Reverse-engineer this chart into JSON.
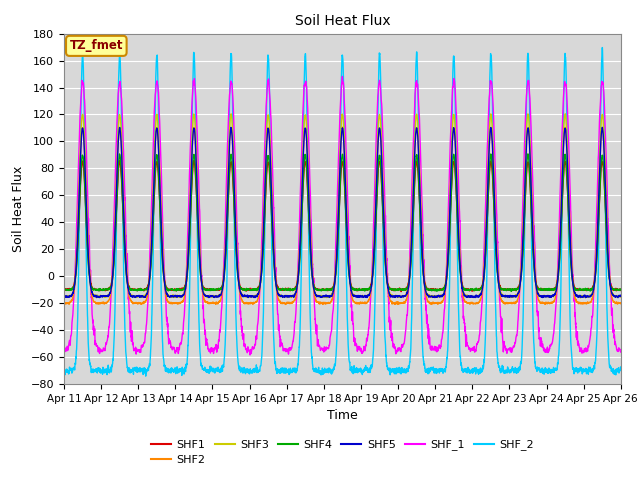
{
  "title": "Soil Heat Flux",
  "xlabel": "Time",
  "ylabel": "Soil Heat Flux",
  "ylim": [
    -80,
    180
  ],
  "yticks": [
    -80,
    -60,
    -40,
    -20,
    0,
    20,
    40,
    60,
    80,
    100,
    120,
    140,
    160,
    180
  ],
  "n_days": 15,
  "start_day": 11,
  "points_per_day": 288,
  "colors": {
    "SHF1": "#dd0000",
    "SHF2": "#ff8800",
    "SHF3": "#cccc00",
    "SHF4": "#00aa00",
    "SHF5": "#0000cc",
    "SHF_1": "#ff00ff",
    "SHF_2": "#00ccff"
  },
  "legend_labels": [
    "SHF1",
    "SHF2",
    "SHF3",
    "SHF4",
    "SHF5",
    "SHF_1",
    "SHF_2"
  ],
  "bg_color": "#d8d8d8",
  "annotation_text": "TZ_fmet",
  "annotation_bg": "#ffff99",
  "annotation_border": "#cc8800",
  "lw": 1.0
}
